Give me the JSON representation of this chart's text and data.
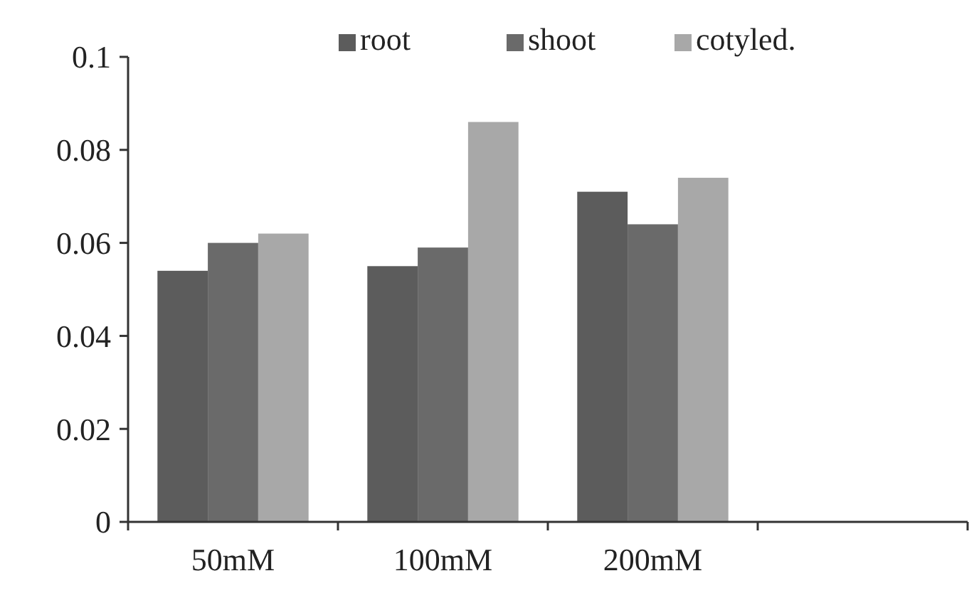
{
  "chart_data": {
    "type": "bar",
    "categories": [
      "50mM",
      "100mM",
      "200mM",
      null
    ],
    "series": [
      {
        "name": "root",
        "color": "#5c5c5c",
        "values": [
          0.054,
          0.055,
          0.071,
          null
        ]
      },
      {
        "name": "shoot",
        "color": "#6a6a6a",
        "values": [
          0.06,
          0.059,
          0.064,
          null
        ]
      },
      {
        "name": "cotyled.",
        "color": "#a8a8a8",
        "values": [
          0.062,
          0.086,
          0.074,
          null
        ]
      }
    ],
    "ylim": [
      0,
      0.1
    ],
    "yticks": [
      0,
      0.02,
      0.04,
      0.06,
      0.08,
      0.1
    ],
    "grid": false,
    "legend": "top"
  }
}
